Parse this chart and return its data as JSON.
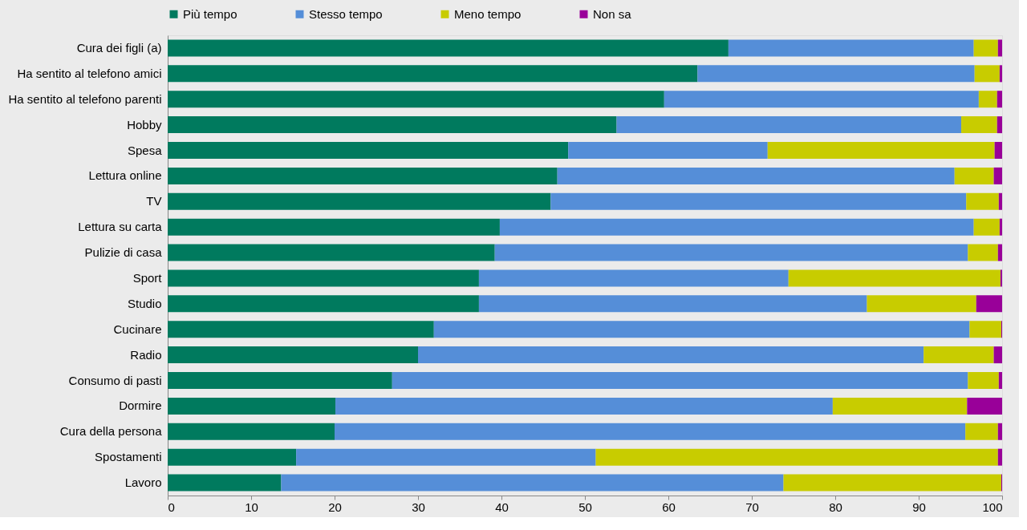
{
  "chart_data": {
    "type": "bar",
    "orientation": "horizontal",
    "stacked": true,
    "legend": "top",
    "grid": false,
    "categories": [
      "Cura dei figli (a)",
      "Ha sentito al telefono amici",
      "Ha sentito al telefono parenti",
      "Hobby",
      "Spesa",
      "Lettura online",
      "TV",
      "Lettura su carta",
      "Pulizie di casa",
      "Sport",
      "Studio",
      "Cucinare",
      "Radio",
      "Consumo di pasti",
      "Dormire",
      "Cura della persona",
      "Spostamenti",
      "Lavoro"
    ],
    "xlim": [
      0,
      100
    ],
    "xticks": [
      0,
      10,
      20,
      30,
      40,
      50,
      60,
      70,
      80,
      90,
      100
    ],
    "series": [
      {
        "name": "Più tempo",
        "color": "#007a5e",
        "values": [
          67.2,
          63.5,
          59.5,
          53.8,
          48.0,
          46.7,
          45.9,
          39.8,
          39.2,
          37.3,
          37.3,
          31.9,
          30.0,
          26.9,
          20.1,
          20.0,
          15.4,
          13.6
        ]
      },
      {
        "name": "Stesso tempo",
        "color": "#558ed8",
        "values": [
          29.4,
          33.2,
          37.7,
          41.3,
          23.9,
          47.6,
          49.8,
          56.8,
          56.7,
          37.1,
          46.5,
          64.2,
          60.6,
          69.0,
          59.6,
          75.6,
          35.9,
          60.2
        ]
      },
      {
        "name": "Meno tempo",
        "color": "#c8cc00",
        "values": [
          2.9,
          3.0,
          2.2,
          4.3,
          27.2,
          4.7,
          3.9,
          3.1,
          3.6,
          25.4,
          13.1,
          3.8,
          8.4,
          3.7,
          16.1,
          3.9,
          48.2,
          26.1
        ]
      },
      {
        "name": "Non sa",
        "color": "#990099",
        "values": [
          0.5,
          0.3,
          0.6,
          0.6,
          0.9,
          1.0,
          0.4,
          0.3,
          0.5,
          0.2,
          3.1,
          0.1,
          1.0,
          0.4,
          4.2,
          0.5,
          0.5,
          0.1
        ]
      }
    ]
  }
}
